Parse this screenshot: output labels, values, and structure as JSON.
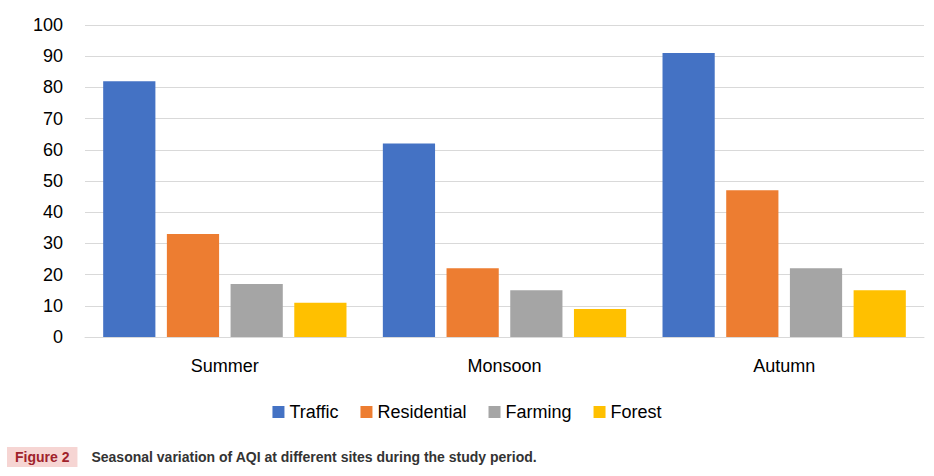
{
  "chart_data": {
    "type": "bar",
    "figure_label": "Figure 2",
    "title": "Seasonal variation of AQI at different sites during the study period.",
    "categories": [
      "Summer",
      "Monsoon",
      "Autumn"
    ],
    "series": [
      {
        "name": "Traffic",
        "color": "#4472c4",
        "values": [
          82,
          62,
          91
        ]
      },
      {
        "name": "Residential",
        "color": "#ed7d31",
        "values": [
          33,
          22,
          47
        ]
      },
      {
        "name": "Farming",
        "color": "#a5a5a5",
        "values": [
          17,
          15,
          22
        ]
      },
      {
        "name": "Forest",
        "color": "#ffc000",
        "values": [
          11,
          9,
          15
        ]
      }
    ],
    "ylim": [
      0,
      100
    ],
    "yticks": [
      0,
      10,
      20,
      30,
      40,
      50,
      60,
      70,
      80,
      90,
      100
    ],
    "grid": true,
    "legend": "bottom",
    "data_labels": false
  }
}
